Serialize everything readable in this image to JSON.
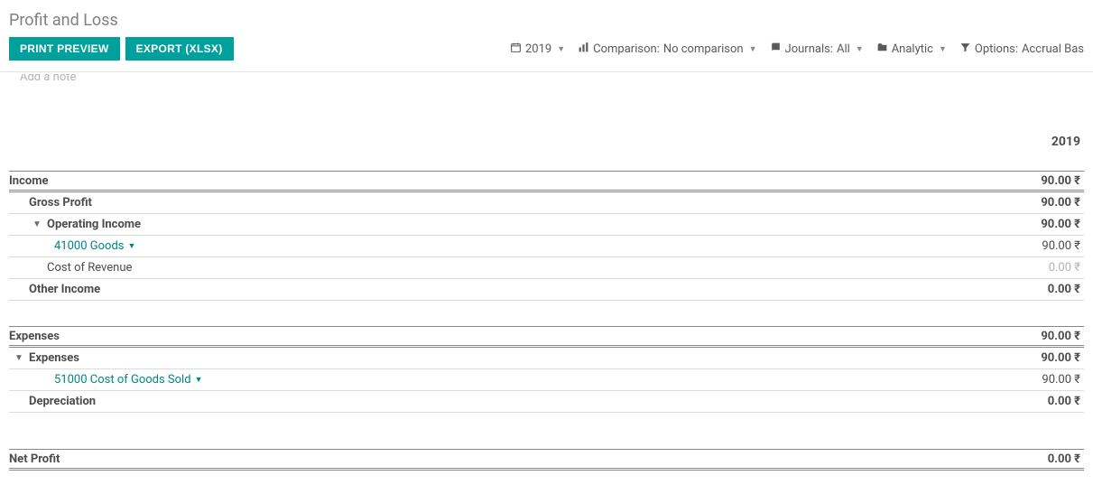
{
  "page_title": "Profit and Loss",
  "toolbar": {
    "print_preview": "PRINT PREVIEW",
    "export_xlsx": "EXPORT (XLSX)"
  },
  "filters": {
    "period": "2019",
    "comparison_label": "Comparison:",
    "comparison_value": "No comparison",
    "journals_label": "Journals:",
    "journals_value": "All",
    "analytic_label": "Analytic",
    "options_label": "Options:",
    "options_value": "Accrual Bas"
  },
  "note_placeholder": "Add a note",
  "column_header": "2019",
  "currency_symbol": "₹",
  "sections": [
    {
      "key": "income",
      "title": "Income",
      "title_value": "90.00 ₹",
      "rows": [
        {
          "label": "Gross Profit",
          "value": "90.00 ₹",
          "indent": 1,
          "bold": true
        },
        {
          "label": "Operating Income",
          "value": "90.00 ₹",
          "indent": 2,
          "bold": true,
          "expander": true
        },
        {
          "label": "41000 Goods",
          "value": "90.00 ₹",
          "indent": 3,
          "link": true
        },
        {
          "label": "Cost of Revenue",
          "value": "0.00 ₹",
          "indent": 2,
          "muted": true
        },
        {
          "label": "Other Income",
          "value": "0.00 ₹",
          "indent": 1,
          "bold": true
        }
      ]
    },
    {
      "key": "expenses",
      "title": "Expenses",
      "title_value": "90.00 ₹",
      "rows": [
        {
          "label": "Expenses",
          "value": "90.00 ₹",
          "indent": 1,
          "bold": true,
          "expander": true
        },
        {
          "label": "51000 Cost of Goods Sold",
          "value": "90.00 ₹",
          "indent": 2,
          "link": true,
          "indent_override": 3
        },
        {
          "label": "Depreciation",
          "value": "0.00 ₹",
          "indent": 1,
          "bold": true
        }
      ]
    }
  ],
  "net_profit": {
    "label": "Net Profit",
    "value": "0.00 ₹"
  },
  "colors": {
    "primary_button_bg": "#00a09d",
    "link": "#008784",
    "muted_text": "#b3b3b3",
    "title_text": "#808080",
    "body_text": "#4c4c4c",
    "row_border": "#dcdcdc",
    "section_border": "#888888"
  }
}
